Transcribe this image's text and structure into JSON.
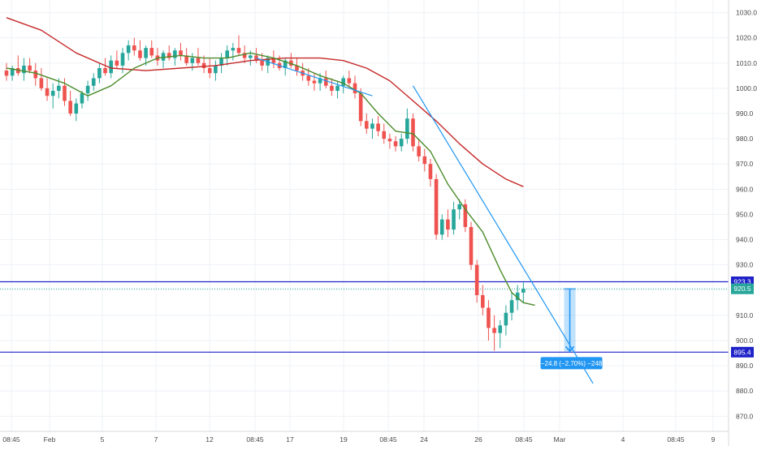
{
  "chart_data": {
    "type": "candlestick",
    "x_ticks": [
      "08:45",
      "Feb",
      "5",
      "7",
      "12",
      "08:45",
      "17",
      "19",
      "08:45",
      "24",
      "26",
      "08:45",
      "Mar",
      "4",
      "08:45",
      "9"
    ],
    "y_ticks": [
      870.0,
      880.0,
      890.0,
      900.0,
      910.0,
      920.0,
      930.0,
      940.0,
      950.0,
      960.0,
      970.0,
      980.0,
      990.0,
      1000.0,
      1010.0,
      1020.0,
      1030.0
    ],
    "ylim": [
      864,
      1035
    ],
    "grid": true,
    "colors": {
      "up": "#26a69a",
      "down": "#ef5350",
      "ma_fast": "#4c8c2b",
      "ma_slow": "#c62828",
      "trend": "#2196f3",
      "hline": "#1e22c8",
      "measure": "#2196f3",
      "last_price": "#26a69a"
    },
    "candles": [
      [
        1007,
        1010,
        1003,
        1005
      ],
      [
        1005,
        1009,
        1003,
        1008
      ],
      [
        1008,
        1013,
        1005,
        1006
      ],
      [
        1006,
        1012,
        1003,
        1009
      ],
      [
        1009,
        1012,
        1006,
        1007
      ],
      [
        1007,
        1010,
        1001,
        1004
      ],
      [
        1004,
        1008,
        999,
        1000
      ],
      [
        1000,
        1004,
        995,
        997
      ],
      [
        997,
        1002,
        992,
        999
      ],
      [
        999,
        1004,
        996,
        1001
      ],
      [
        1001,
        1004,
        993,
        995
      ],
      [
        995,
        999,
        989,
        990
      ],
      [
        990,
        996,
        987,
        994
      ],
      [
        994,
        999,
        992,
        998
      ],
      [
        998,
        1003,
        995,
        1001
      ],
      [
        1001,
        1006,
        999,
        1004
      ],
      [
        1004,
        1010,
        1002,
        1008
      ],
      [
        1008,
        1012,
        1005,
        1006
      ],
      [
        1006,
        1013,
        1004,
        1011
      ],
      [
        1011,
        1015,
        1008,
        1009
      ],
      [
        1009,
        1016,
        1006,
        1014
      ],
      [
        1014,
        1019,
        1011,
        1017
      ],
      [
        1017,
        1020,
        1013,
        1015
      ],
      [
        1015,
        1019,
        1011,
        1012
      ],
      [
        1012,
        1017,
        1009,
        1016
      ],
      [
        1016,
        1019,
        1012,
        1013
      ],
      [
        1013,
        1016,
        1009,
        1011
      ],
      [
        1011,
        1015,
        1008,
        1014
      ],
      [
        1014,
        1017,
        1011,
        1012
      ],
      [
        1012,
        1016,
        1009,
        1015
      ],
      [
        1015,
        1018,
        1011,
        1013
      ],
      [
        1013,
        1016,
        1009,
        1010
      ],
      [
        1010,
        1014,
        1007,
        1012
      ],
      [
        1012,
        1016,
        1009,
        1010
      ],
      [
        1010,
        1013,
        1006,
        1008
      ],
      [
        1008,
        1012,
        1004,
        1006
      ],
      [
        1006,
        1011,
        1003,
        1009
      ],
      [
        1009,
        1014,
        1006,
        1012
      ],
      [
        1012,
        1017,
        1009,
        1015
      ],
      [
        1015,
        1018,
        1011,
        1016
      ],
      [
        1016,
        1021,
        1013,
        1014
      ],
      [
        1014,
        1017,
        1010,
        1012
      ],
      [
        1012,
        1015,
        1009,
        1013
      ],
      [
        1013,
        1016,
        1010,
        1011
      ],
      [
        1011,
        1014,
        1007,
        1009
      ],
      [
        1009,
        1013,
        1006,
        1012
      ],
      [
        1012,
        1015,
        1008,
        1010
      ],
      [
        1010,
        1013,
        1007,
        1008
      ],
      [
        1008,
        1012,
        1005,
        1011
      ],
      [
        1011,
        1014,
        1008,
        1009
      ],
      [
        1009,
        1012,
        1005,
        1007
      ],
      [
        1007,
        1010,
        1003,
        1005
      ],
      [
        1005,
        1008,
        1001,
        1003
      ],
      [
        1003,
        1006,
        999,
        1002
      ],
      [
        1002,
        1006,
        999,
        1004
      ],
      [
        1004,
        1007,
        1000,
        1001
      ],
      [
        1001,
        1004,
        997,
        999
      ],
      [
        999,
        1003,
        996,
        1001
      ],
      [
        1001,
        1005,
        998,
        1004
      ],
      [
        1004,
        1007,
        1000,
        1002
      ],
      [
        1002,
        1005,
        996,
        998
      ],
      [
        998,
        1000,
        985,
        987
      ],
      [
        987,
        990,
        982,
        984
      ],
      [
        984,
        988,
        980,
        986
      ],
      [
        986,
        989,
        981,
        983
      ],
      [
        983,
        986,
        978,
        980
      ],
      [
        980,
        982,
        976,
        979
      ],
      [
        979,
        981,
        975,
        977
      ],
      [
        977,
        982,
        975,
        980
      ],
      [
        980,
        992,
        978,
        988
      ],
      [
        988,
        990,
        975,
        977
      ],
      [
        977,
        980,
        971,
        973
      ],
      [
        973,
        976,
        967,
        970
      ],
      [
        970,
        972,
        961,
        964
      ],
      [
        964,
        966,
        940,
        942
      ],
      [
        942,
        950,
        940,
        948
      ],
      [
        948,
        952,
        941,
        944
      ],
      [
        944,
        955,
        942,
        952
      ],
      [
        952,
        956,
        948,
        954
      ],
      [
        954,
        956,
        943,
        945
      ],
      [
        945,
        947,
        928,
        930
      ],
      [
        930,
        932,
        915,
        918
      ],
      [
        918,
        922,
        910,
        913
      ],
      [
        913,
        916,
        900,
        905
      ],
      [
        905,
        910,
        896,
        903
      ],
      [
        903,
        908,
        897,
        906
      ],
      [
        906,
        914,
        902,
        911
      ],
      [
        911,
        919,
        908,
        916
      ],
      [
        916,
        922,
        912,
        919
      ],
      [
        919,
        923,
        915,
        920.5
      ]
    ],
    "ma_fast": [
      [
        0,
        1008
      ],
      [
        5,
        1006
      ],
      [
        10,
        1002
      ],
      [
        14,
        997
      ],
      [
        18,
        1001
      ],
      [
        22,
        1008
      ],
      [
        26,
        1012
      ],
      [
        30,
        1013
      ],
      [
        34,
        1012
      ],
      [
        38,
        1012
      ],
      [
        42,
        1014
      ],
      [
        46,
        1012
      ],
      [
        50,
        1009
      ],
      [
        54,
        1005
      ],
      [
        58,
        1002
      ],
      [
        61,
        998
      ],
      [
        64,
        990
      ],
      [
        67,
        983
      ],
      [
        70,
        982
      ],
      [
        73,
        975
      ],
      [
        76,
        962
      ],
      [
        79,
        952
      ],
      [
        82,
        943
      ],
      [
        85,
        928
      ],
      [
        87,
        919
      ],
      [
        89,
        915
      ],
      [
        91,
        914
      ]
    ],
    "ma_slow": [
      [
        0,
        1028
      ],
      [
        6,
        1023
      ],
      [
        12,
        1014
      ],
      [
        18,
        1008
      ],
      [
        24,
        1007
      ],
      [
        30,
        1008
      ],
      [
        36,
        1009
      ],
      [
        42,
        1011
      ],
      [
        48,
        1012
      ],
      [
        54,
        1012
      ],
      [
        58,
        1011
      ],
      [
        62,
        1008
      ],
      [
        66,
        1003
      ],
      [
        70,
        995
      ],
      [
        74,
        987
      ],
      [
        78,
        978
      ],
      [
        82,
        970
      ],
      [
        86,
        964
      ],
      [
        89,
        961
      ]
    ],
    "trend_lines": [
      {
        "from": [
          43,
          1012
        ],
        "to": [
          63,
          997
        ]
      },
      {
        "from": [
          70,
          1001
        ],
        "to": [
          101,
          883
        ]
      }
    ],
    "hlines": [
      {
        "price": 923.3,
        "label": "923.3"
      },
      {
        "price": 895.4,
        "label": "895.4"
      }
    ],
    "last_price": {
      "price": 920.5,
      "label": "920.5"
    },
    "measure": {
      "x": 97,
      "from": 920.5,
      "to": 895.7,
      "label": "−24.8 (−2.70%) −248"
    }
  }
}
